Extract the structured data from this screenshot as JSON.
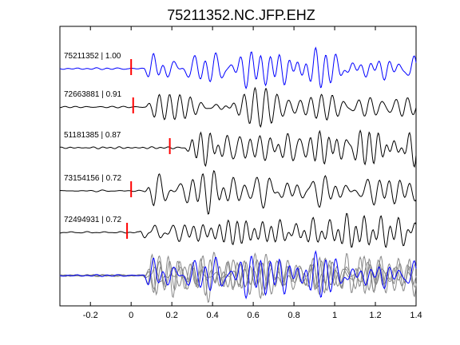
{
  "chart_data": {
    "type": "line",
    "title": "75211352.NC.JFP.EHZ",
    "xlabel": "",
    "ylabel": "",
    "xlim": [
      -0.35,
      1.4
    ],
    "grid": false,
    "x_ticks": [
      -0.2,
      0,
      0.2,
      0.4,
      0.6,
      0.8,
      1,
      1.2,
      1.4
    ],
    "x_tick_labels": [
      "-0.2",
      "0",
      "0.2",
      "0.4",
      "0.6",
      "0.8",
      "1",
      "1.2",
      "1.4"
    ],
    "traces": [
      {
        "label": "75211352 | 1.00",
        "event_id": "75211352",
        "correlation": 1.0,
        "pick_time": 0.0,
        "color": "#0000ff",
        "seed": 1
      },
      {
        "label": "72663881 | 0.91",
        "event_id": "72663881",
        "correlation": 0.91,
        "pick_time": 0.01,
        "color": "#000000",
        "seed": 2
      },
      {
        "label": "51181385 | 0.87",
        "event_id": "51181385",
        "correlation": 0.87,
        "pick_time": 0.19,
        "color": "#000000",
        "seed": 3
      },
      {
        "label": "73154156 | 0.72",
        "event_id": "73154156",
        "correlation": 0.72,
        "pick_time": 0.0,
        "color": "#000000",
        "seed": 4
      },
      {
        "label": "72494931 | 0.72",
        "event_id": "72494931",
        "correlation": 0.72,
        "pick_time": -0.02,
        "color": "#000000",
        "seed": 5
      }
    ],
    "stack": {
      "aligned_color": "#888888",
      "reference_color": "#0000ff"
    },
    "pick_color": "#ff0000"
  }
}
